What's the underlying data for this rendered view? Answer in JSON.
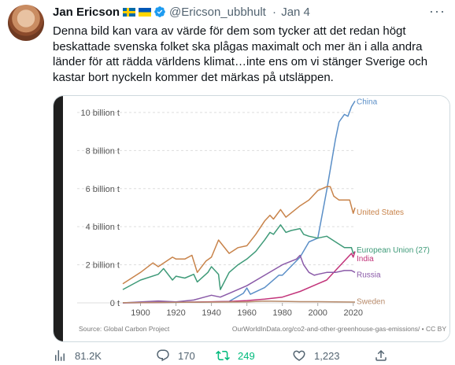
{
  "tweet": {
    "author_name": "Jan Ericson",
    "handle": "@Ericson_ubbhult",
    "separator": "·",
    "date": "Jan 4",
    "text": "Denna bild kan vara av värde för dem som tycker att det redan högt beskattade svenska folket ska plågas maximalt och mer än i alla andra länder för att rädda världens klimat…inte ens om vi stänger Sverige och kastar bort nyckeln kommer det märkas på utsläppen."
  },
  "actions": {
    "views": "81.2K",
    "replies": "170",
    "retweets": "249",
    "likes": "1,223"
  },
  "colors": {
    "china": "#5b8fc7",
    "us": "#c8834a",
    "eu": "#3e9a78",
    "india": "#c2347a",
    "russia": "#8a5aa8",
    "sweden": "#b78a6a",
    "retweet": "#00ba7c"
  },
  "chart_data": {
    "type": "line",
    "x_ticks": [
      "1900",
      "1920",
      "1940",
      "1960",
      "1980",
      "2000",
      "2020"
    ],
    "y_ticks": [
      "0 t",
      "2 billion t",
      "4 billion t",
      "6 billion t",
      "8 billion t",
      "10 billion t"
    ],
    "xlim": [
      1890,
      2021
    ],
    "ylim": [
      0,
      10.7
    ],
    "unit": "billion t",
    "source_left": "Source: Global Carbon Project",
    "source_right": "OurWorldInData.org/co2-and-other-greenhouse-gas-emissions/ • CC BY",
    "series": [
      {
        "name": "China",
        "color": "#5b8fc7",
        "points": [
          [
            1890,
            0
          ],
          [
            1940,
            0.05
          ],
          [
            1950,
            0.08
          ],
          [
            1958,
            0.5
          ],
          [
            1960,
            0.78
          ],
          [
            1962,
            0.45
          ],
          [
            1970,
            0.8
          ],
          [
            1978,
            1.45
          ],
          [
            1980,
            1.45
          ],
          [
            1990,
            2.4
          ],
          [
            1995,
            3.2
          ],
          [
            2000,
            3.4
          ],
          [
            2005,
            5.9
          ],
          [
            2010,
            8.6
          ],
          [
            2012,
            9.5
          ],
          [
            2015,
            9.9
          ],
          [
            2017,
            9.8
          ],
          [
            2019,
            10.3
          ],
          [
            2021,
            10.6
          ]
        ]
      },
      {
        "name": "United States",
        "color": "#c8834a",
        "points": [
          [
            1890,
            1.0
          ],
          [
            1900,
            1.6
          ],
          [
            1907,
            2.1
          ],
          [
            1910,
            1.9
          ],
          [
            1918,
            2.4
          ],
          [
            1920,
            2.3
          ],
          [
            1925,
            2.3
          ],
          [
            1929,
            2.5
          ],
          [
            1932,
            1.6
          ],
          [
            1937,
            2.2
          ],
          [
            1940,
            2.4
          ],
          [
            1944,
            3.3
          ],
          [
            1950,
            2.6
          ],
          [
            1955,
            2.9
          ],
          [
            1960,
            3.0
          ],
          [
            1965,
            3.6
          ],
          [
            1970,
            4.3
          ],
          [
            1973,
            4.6
          ],
          [
            1975,
            4.4
          ],
          [
            1979,
            4.9
          ],
          [
            1982,
            4.5
          ],
          [
            1990,
            5.1
          ],
          [
            1995,
            5.4
          ],
          [
            2000,
            5.9
          ],
          [
            2005,
            6.1
          ],
          [
            2007,
            6.1
          ],
          [
            2009,
            5.6
          ],
          [
            2012,
            5.4
          ],
          [
            2015,
            5.4
          ],
          [
            2018,
            5.4
          ],
          [
            2020,
            4.7
          ],
          [
            2021,
            5.0
          ]
        ]
      },
      {
        "name": "European Union (27)",
        "color": "#3e9a78",
        "points": [
          [
            1890,
            0.7
          ],
          [
            1900,
            1.2
          ],
          [
            1910,
            1.5
          ],
          [
            1913,
            1.8
          ],
          [
            1918,
            1.2
          ],
          [
            1920,
            1.4
          ],
          [
            1925,
            1.3
          ],
          [
            1930,
            1.5
          ],
          [
            1932,
            1.1
          ],
          [
            1938,
            1.6
          ],
          [
            1940,
            1.9
          ],
          [
            1944,
            1.5
          ],
          [
            1945,
            0.7
          ],
          [
            1950,
            1.6
          ],
          [
            1955,
            2.0
          ],
          [
            1960,
            2.3
          ],
          [
            1965,
            2.7
          ],
          [
            1970,
            3.3
          ],
          [
            1973,
            3.7
          ],
          [
            1975,
            3.6
          ],
          [
            1979,
            4.1
          ],
          [
            1982,
            3.7
          ],
          [
            1985,
            3.8
          ],
          [
            1990,
            3.9
          ],
          [
            1992,
            3.6
          ],
          [
            1995,
            3.5
          ],
          [
            2000,
            3.4
          ],
          [
            2005,
            3.5
          ],
          [
            2010,
            3.2
          ],
          [
            2015,
            2.9
          ],
          [
            2019,
            2.9
          ],
          [
            2020,
            2.6
          ],
          [
            2021,
            2.7
          ]
        ]
      },
      {
        "name": "India",
        "color": "#c2347a",
        "points": [
          [
            1890,
            0
          ],
          [
            1930,
            0.04
          ],
          [
            1950,
            0.07
          ],
          [
            1960,
            0.12
          ],
          [
            1970,
            0.2
          ],
          [
            1980,
            0.3
          ],
          [
            1990,
            0.6
          ],
          [
            2000,
            1.0
          ],
          [
            2005,
            1.2
          ],
          [
            2010,
            1.7
          ],
          [
            2015,
            2.2
          ],
          [
            2019,
            2.6
          ],
          [
            2020,
            2.4
          ],
          [
            2021,
            2.7
          ]
        ]
      },
      {
        "name": "Russia",
        "color": "#8a5aa8",
        "points": [
          [
            1890,
            0
          ],
          [
            1910,
            0.1
          ],
          [
            1920,
            0.05
          ],
          [
            1930,
            0.15
          ],
          [
            1940,
            0.4
          ],
          [
            1945,
            0.3
          ],
          [
            1950,
            0.5
          ],
          [
            1960,
            0.9
          ],
          [
            1970,
            1.45
          ],
          [
            1980,
            2.0
          ],
          [
            1988,
            2.3
          ],
          [
            1990,
            2.5
          ],
          [
            1992,
            2.0
          ],
          [
            1995,
            1.6
          ],
          [
            1998,
            1.45
          ],
          [
            2000,
            1.5
          ],
          [
            2005,
            1.6
          ],
          [
            2010,
            1.6
          ],
          [
            2015,
            1.7
          ],
          [
            2019,
            1.7
          ],
          [
            2021,
            1.6
          ]
        ]
      },
      {
        "name": "Sweden",
        "color": "#b78a6a",
        "points": [
          [
            1890,
            0.01
          ],
          [
            1960,
            0.05
          ],
          [
            1970,
            0.09
          ],
          [
            1980,
            0.08
          ],
          [
            1990,
            0.06
          ],
          [
            2000,
            0.06
          ],
          [
            2010,
            0.05
          ],
          [
            2021,
            0.04
          ]
        ]
      }
    ]
  }
}
